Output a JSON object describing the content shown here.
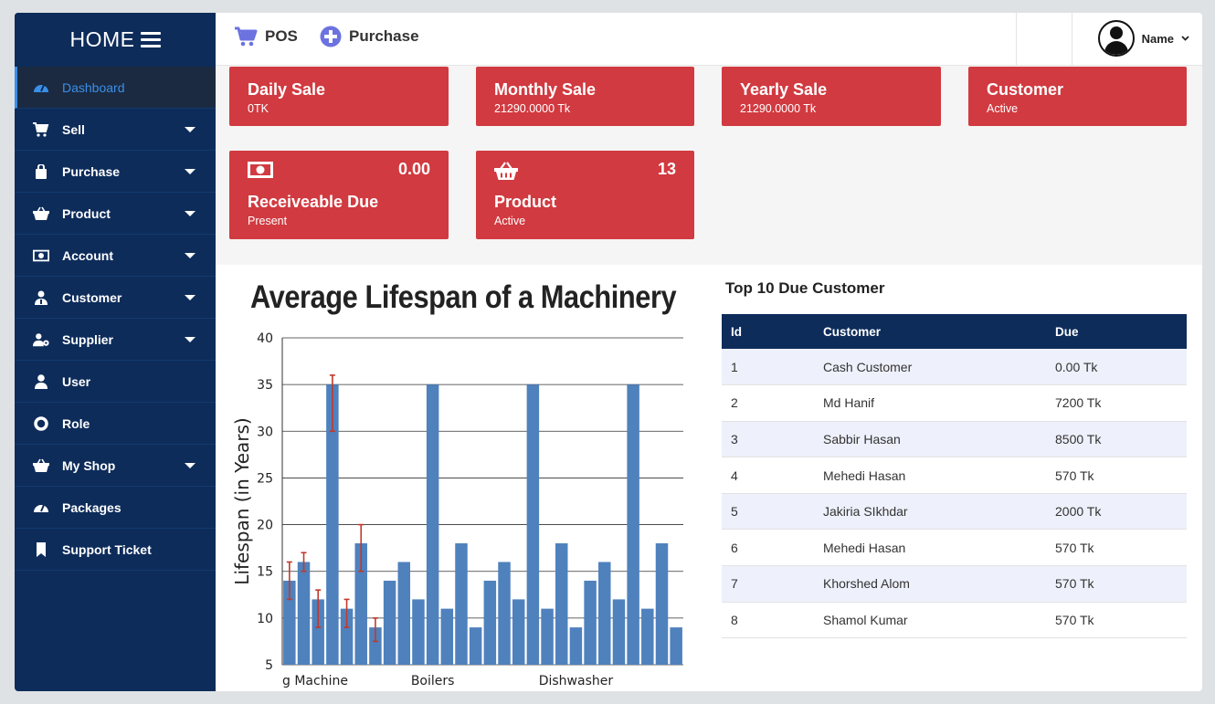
{
  "sidebar": {
    "brand": "HOME",
    "items": [
      {
        "label": "Dashboard",
        "icon": "dashboard-icon",
        "active": true,
        "dropdown": false
      },
      {
        "label": "Sell",
        "icon": "cart-icon",
        "dropdown": true
      },
      {
        "label": "Purchase",
        "icon": "bag-icon",
        "dropdown": true
      },
      {
        "label": "Product",
        "icon": "basket-icon",
        "dropdown": true
      },
      {
        "label": "Account",
        "icon": "money-icon",
        "dropdown": true
      },
      {
        "label": "Customer",
        "icon": "customer-icon",
        "dropdown": true
      },
      {
        "label": "Supplier",
        "icon": "supplier-icon",
        "dropdown": true
      },
      {
        "label": "User",
        "icon": "user-icon",
        "dropdown": false
      },
      {
        "label": "Role",
        "icon": "lifebuoy-icon",
        "dropdown": false
      },
      {
        "label": "My Shop",
        "icon": "basket-icon",
        "dropdown": true
      },
      {
        "label": "Packages",
        "icon": "dashboard-icon",
        "dropdown": false
      },
      {
        "label": "Support Ticket",
        "icon": "bookmark-icon",
        "dropdown": false
      }
    ]
  },
  "topbar": {
    "pos_label": "POS",
    "purchase_label": "Purchase",
    "user_name": "Name"
  },
  "colors": {
    "sidebar": "#0d2c5a",
    "card": "#d13a40",
    "accent": "#3b8fe8",
    "bar": "#4f81bd",
    "error": "#c0392b",
    "topicon": "#6c72e0"
  },
  "cards": {
    "daily": {
      "title": "Daily Sale",
      "sub": "0TK"
    },
    "monthly": {
      "title": "Monthly Sale",
      "sub": "21290.0000 Tk"
    },
    "yearly": {
      "title": "Yearly Sale",
      "sub": "21290.0000 Tk"
    },
    "customer": {
      "title": "Customer",
      "sub": "Active"
    },
    "receivable": {
      "title": "Receiveable Due",
      "sub": "Present",
      "value": "0.00"
    },
    "product": {
      "title": "Product",
      "sub": "Active",
      "value": "13"
    }
  },
  "chart_data": {
    "type": "bar",
    "title": "Average Lifespan of a Machinery",
    "ylabel": "Lifespan (in Years)",
    "xlabel": "",
    "ylim": [
      5,
      40
    ],
    "yticks": [
      5,
      10,
      15,
      20,
      25,
      30,
      35,
      40
    ],
    "grid": true,
    "x_tick_labels": [
      {
        "text": "g Machine",
        "index": 0
      },
      {
        "text": "Boilers",
        "index": 10
      },
      {
        "text": "Dishwasher",
        "index": 20
      }
    ],
    "values": [
      14,
      16,
      12,
      35,
      11,
      18,
      9,
      14,
      16,
      12,
      35,
      11,
      18,
      9,
      14,
      16,
      12,
      35,
      11,
      18,
      9,
      14,
      16,
      12,
      35,
      11,
      18,
      9
    ],
    "error_bars": [
      {
        "index": 0,
        "low": 12,
        "high": 16
      },
      {
        "index": 1,
        "low": 15,
        "high": 17
      },
      {
        "index": 2,
        "low": 9,
        "high": 13
      },
      {
        "index": 3,
        "low": 30,
        "high": 36
      },
      {
        "index": 4,
        "low": 9,
        "high": 12
      },
      {
        "index": 5,
        "low": 15,
        "high": 20
      },
      {
        "index": 6,
        "low": 7.5,
        "high": 10
      }
    ]
  },
  "due_table": {
    "title": "Top 10 Due Customer",
    "headers": [
      "Id",
      "Customer",
      "Due"
    ],
    "rows": [
      [
        "1",
        "Cash Customer",
        "0.00 Tk"
      ],
      [
        "2",
        "Md Hanif",
        "7200 Tk"
      ],
      [
        "3",
        "Sabbir Hasan",
        "8500 Tk"
      ],
      [
        "4",
        "Mehedi Hasan",
        "570 Tk"
      ],
      [
        "5",
        "Jakiria SIkhdar",
        "2000 Tk"
      ],
      [
        "6",
        "Mehedi Hasan",
        "570 Tk"
      ],
      [
        "7",
        "Khorshed Alom",
        "570 Tk"
      ],
      [
        "8",
        "Shamol Kumar",
        "570 Tk"
      ]
    ]
  }
}
